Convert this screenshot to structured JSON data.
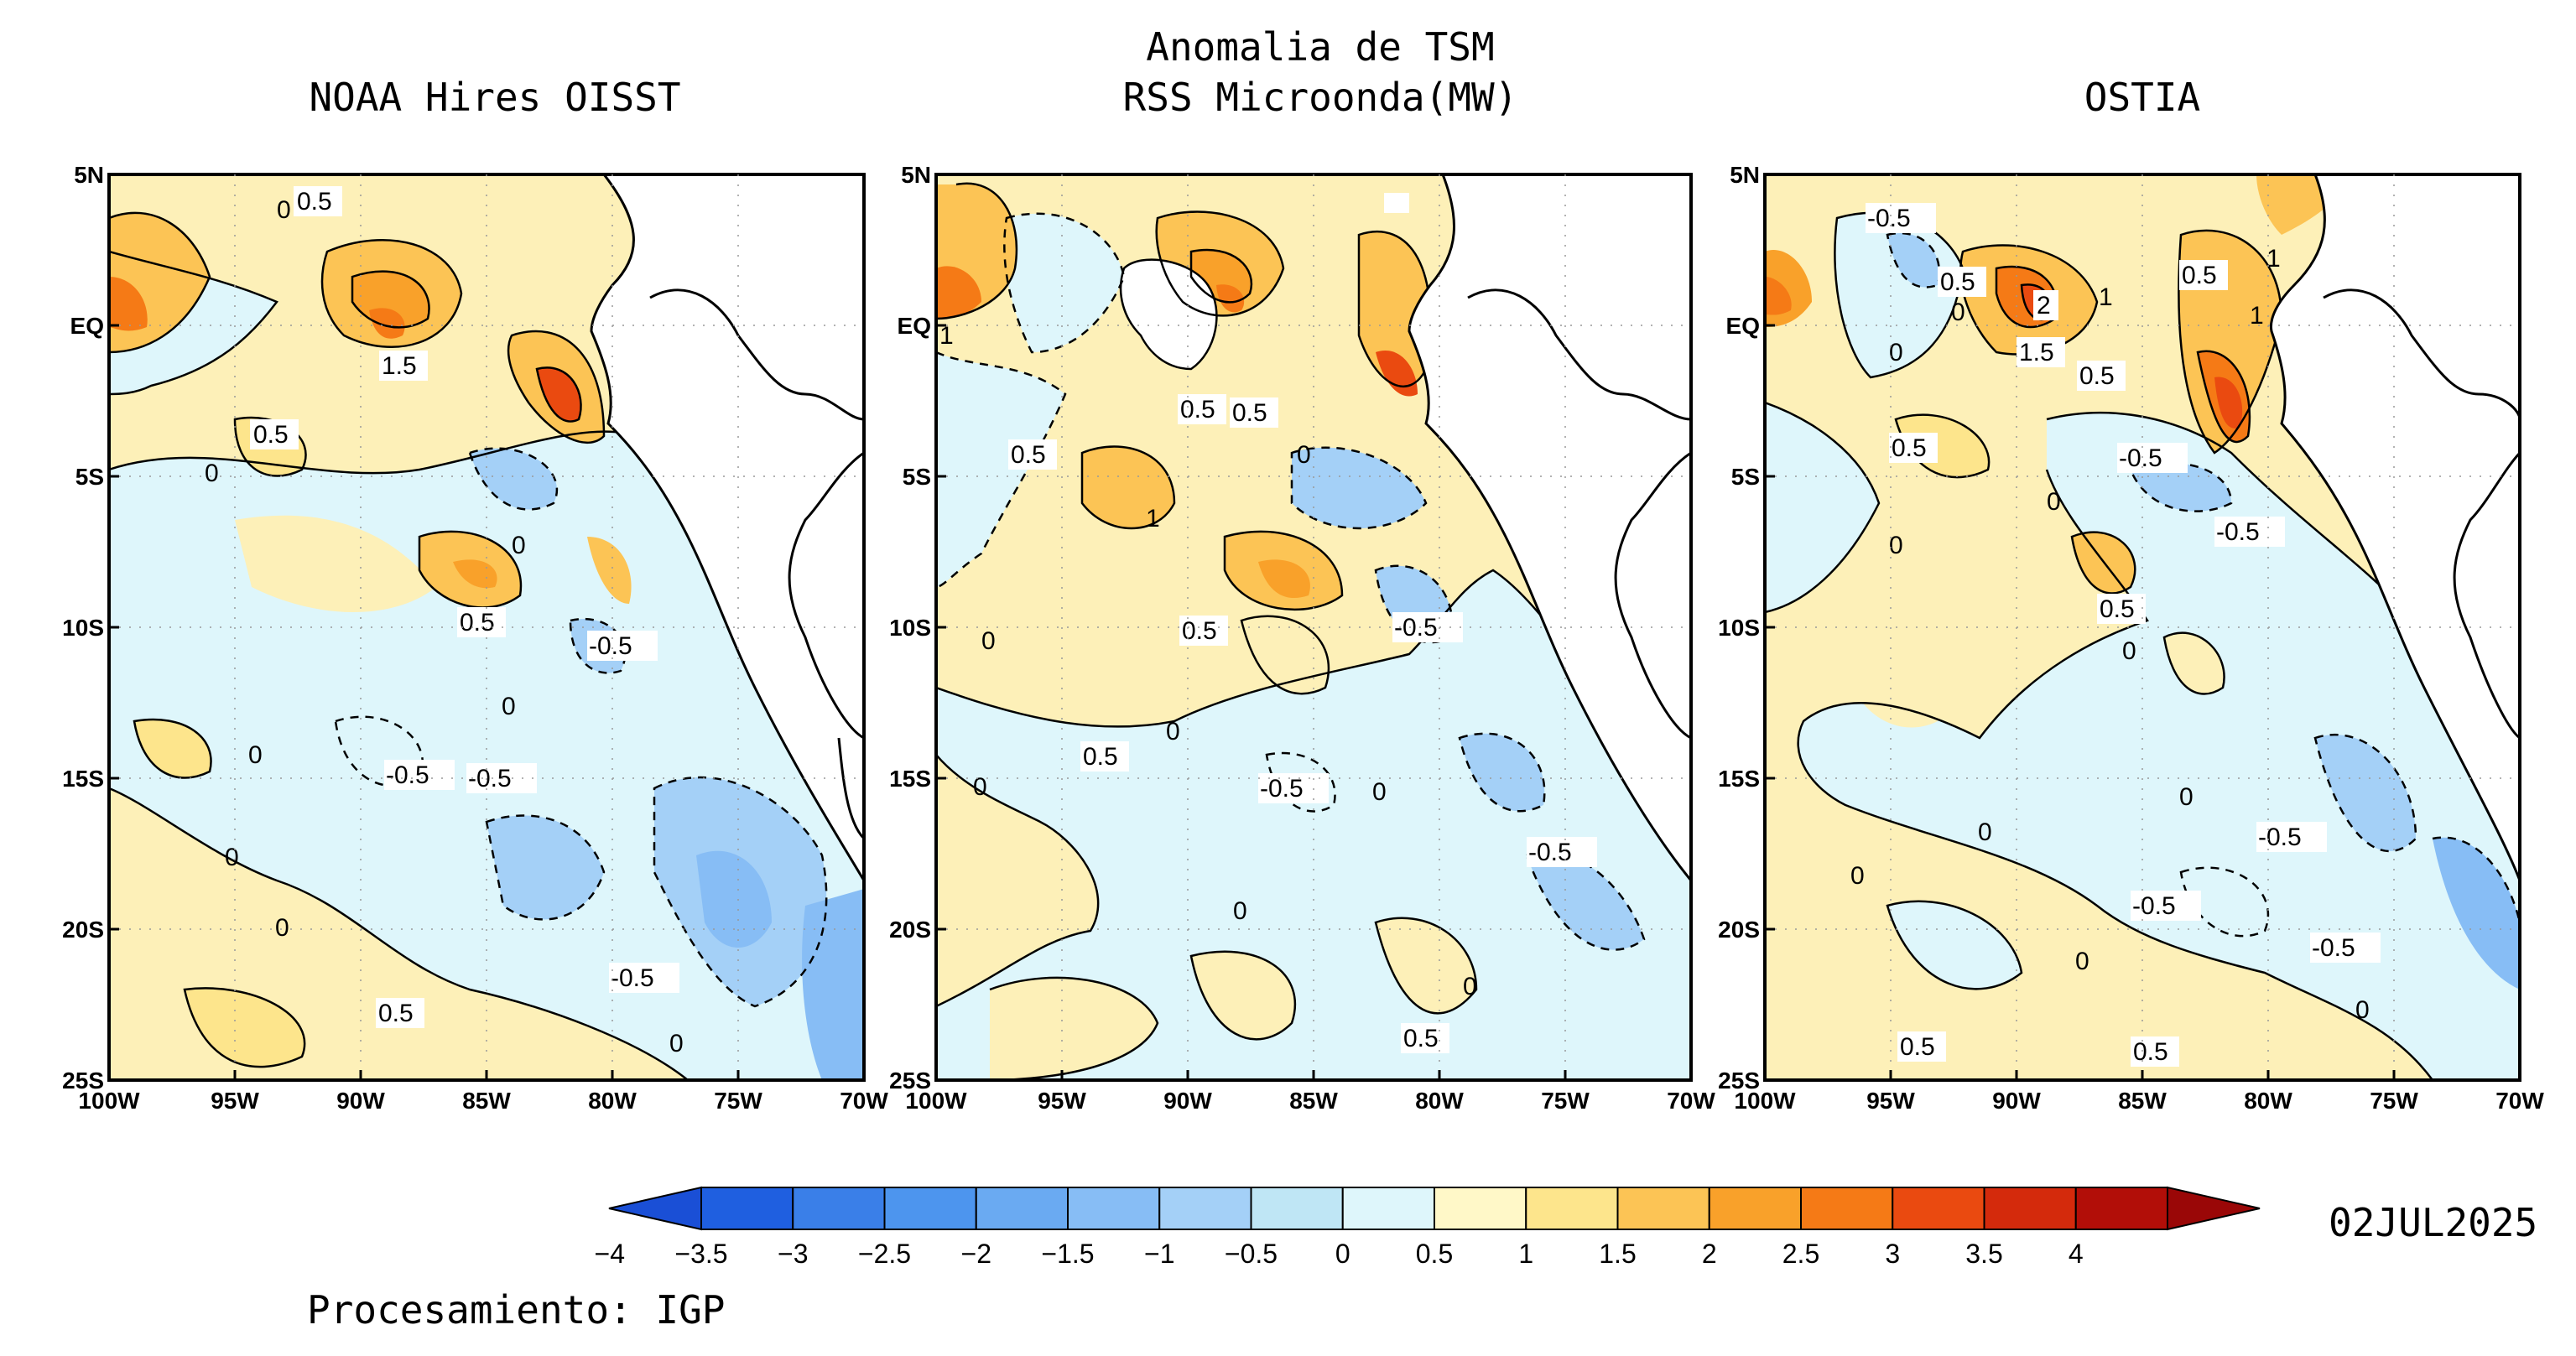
{
  "title_line1": "Anomalia de TSM",
  "panels": [
    {
      "title": "NOAA Hires OISST",
      "contour_labels": [
        "0.5",
        "0",
        "1.5",
        "0.5",
        "0",
        "0",
        "0.5",
        "-0.5",
        "0",
        "0",
        "-0.5",
        "-0.5",
        "0",
        "0",
        "-0.5",
        "0.5",
        "0"
      ]
    },
    {
      "title": "RSS Microonda(MW)",
      "contour_labels": [
        "1",
        "0.5",
        "0.5",
        "0.5",
        "0",
        "1",
        "0",
        "0.5",
        "-0.5",
        "0.5",
        "0",
        "0",
        "-0.5",
        "0",
        "-0.5",
        "0",
        "0",
        "0.5"
      ]
    },
    {
      "title": "OSTIA",
      "contour_labels": [
        "-0.5",
        "0.5",
        "0.5",
        "1",
        "2",
        "0",
        "1",
        "1",
        "0",
        "1.5",
        "0.5",
        "0.5",
        "-0.5",
        "0",
        "0",
        "-0.5",
        "0.5",
        "0",
        "0",
        "0",
        "-0.5",
        "0",
        "-0.5",
        "-0.5",
        "0",
        "0.5",
        "0.5",
        "0"
      ]
    }
  ],
  "lat_labels": [
    "5N",
    "EQ",
    "5S",
    "10S",
    "15S",
    "20S",
    "25S"
  ],
  "lon_labels": [
    "100W",
    "95W",
    "90W",
    "85W",
    "80W",
    "75W",
    "70W"
  ],
  "colorbar": {
    "ticks": [
      "−4",
      "−3.5",
      "−3",
      "−2.5",
      "−2",
      "−1.5",
      "−1",
      "−0.5",
      "0",
      "0.5",
      "1",
      "1.5",
      "2",
      "2.5",
      "3",
      "3.5",
      "4"
    ],
    "colors": [
      "#1f5fe0",
      "#3a7fe8",
      "#4d95ee",
      "#6aaaf2",
      "#87bdf5",
      "#a4d0f7",
      "#bfe6f5",
      "#def6fb",
      "#fff8c8",
      "#fde58c",
      "#fcc455",
      "#f9a12a",
      "#f57a16",
      "#ea4a10",
      "#d42a0c",
      "#b20e08"
    ],
    "under_color": "#1a4fd6",
    "over_color": "#9a0707"
  },
  "date": "02JUL2025",
  "footer": "Procesamiento: IGP"
}
